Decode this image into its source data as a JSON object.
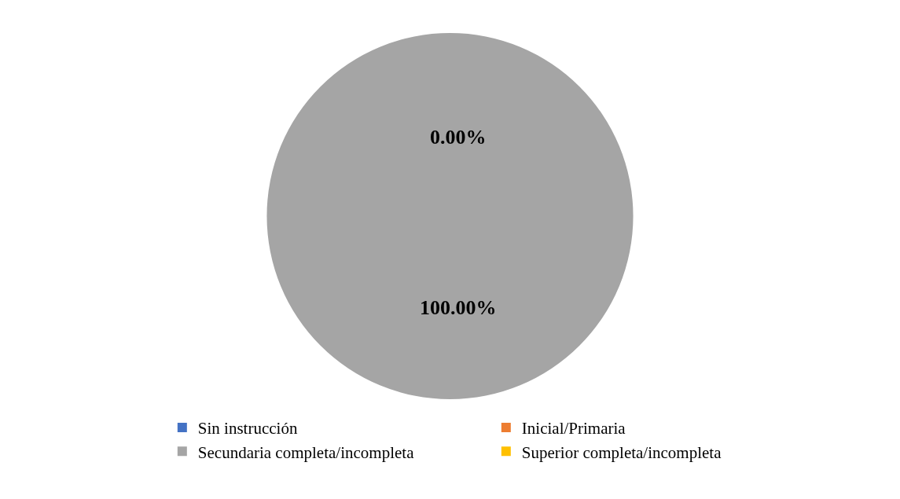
{
  "chart_data": {
    "type": "pie",
    "categories": [
      "Sin instrucción",
      "Inicial/Primaria",
      "Secundaria completa/incompleta",
      "Superior completa/incompleta"
    ],
    "values": [
      0,
      0,
      100,
      0
    ],
    "colors": [
      "#4472c4",
      "#ed7d31",
      "#a5a5a5",
      "#ffc000"
    ],
    "value_labels": [
      "0.00%",
      null,
      "100.00%",
      null
    ],
    "legend": "bottom"
  }
}
